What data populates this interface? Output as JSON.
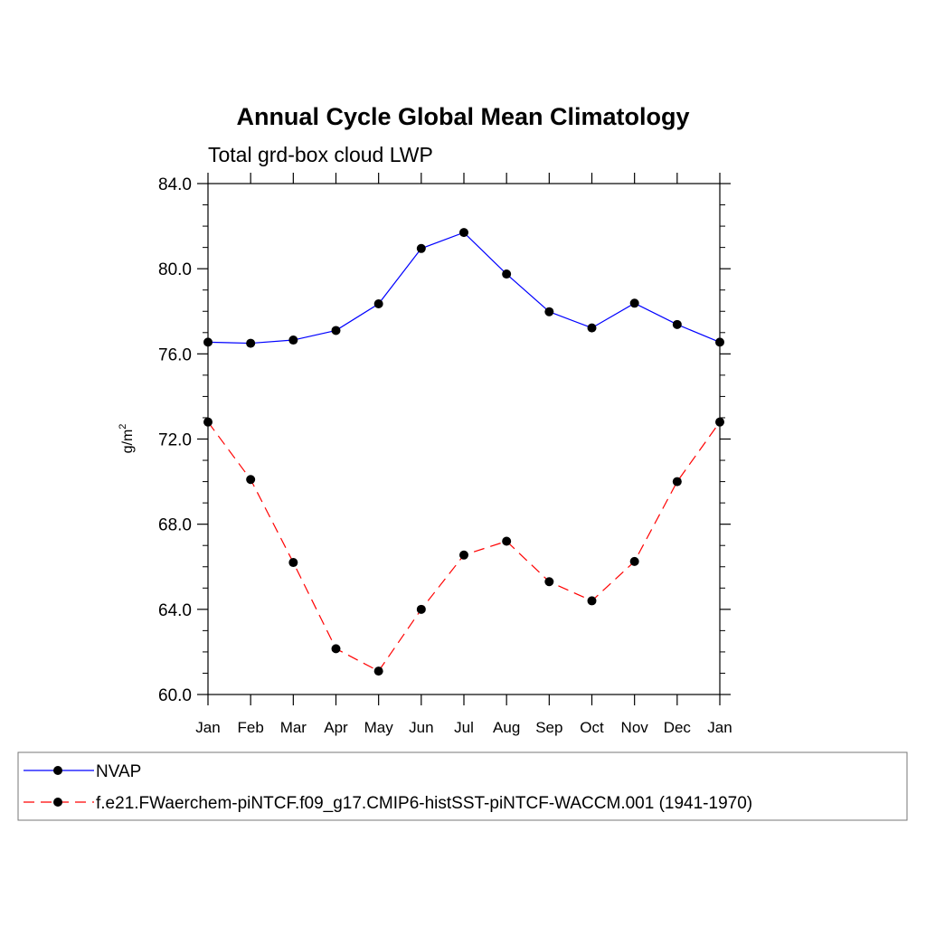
{
  "chart_data": {
    "type": "line",
    "title": "Annual Cycle Global Mean Climatology",
    "subtitle": "Total grd-box cloud LWP",
    "xlabel": "",
    "ylabel": "g/m",
    "ylabel_sup": "2",
    "categories": [
      "Jan",
      "Feb",
      "Mar",
      "Apr",
      "May",
      "Jun",
      "Jul",
      "Aug",
      "Sep",
      "Oct",
      "Nov",
      "Dec",
      "Jan"
    ],
    "ylim": [
      60,
      84
    ],
    "yticks": [
      60,
      64,
      68,
      72,
      76,
      80,
      84
    ],
    "ytick_labels": [
      "60.0",
      "64.0",
      "68.0",
      "72.0",
      "76.0",
      "80.0",
      "84.0"
    ],
    "grid": false,
    "legend_position": "bottom",
    "series": [
      {
        "name": "NVAP",
        "color": "#0000ff",
        "dash": "solid",
        "values": [
          76.55,
          76.5,
          76.65,
          77.1,
          78.35,
          80.95,
          81.7,
          79.75,
          77.98,
          77.22,
          78.38,
          77.38,
          76.55
        ]
      },
      {
        "name": "f.e21.FWaerchem-piNTCF.f09_g17.CMIP6-histSST-piNTCF-WACCM.001 (1941-1970)",
        "color": "#ff0000",
        "dash": "dashed",
        "values": [
          72.8,
          70.1,
          66.2,
          62.15,
          61.1,
          64.0,
          66.55,
          67.2,
          65.3,
          64.4,
          66.25,
          70.0,
          72.8
        ]
      }
    ]
  }
}
